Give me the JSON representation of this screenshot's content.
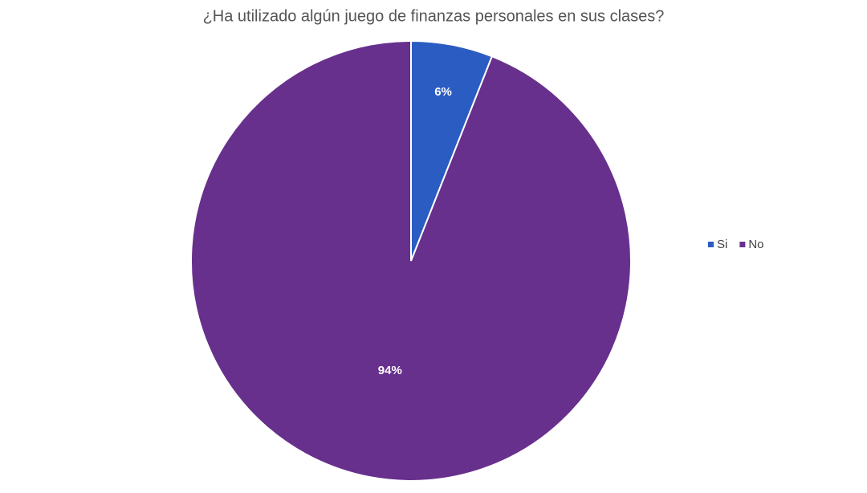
{
  "chart_data": {
    "type": "pie",
    "title": "¿Ha utilizado algún juego de finanzas personales en sus clases?",
    "categories": [
      "Si",
      "No"
    ],
    "values": [
      6,
      94
    ],
    "value_labels": [
      "6%",
      "94%"
    ],
    "colors": [
      "#2b5cc2",
      "#67308d"
    ],
    "legend": "right"
  }
}
